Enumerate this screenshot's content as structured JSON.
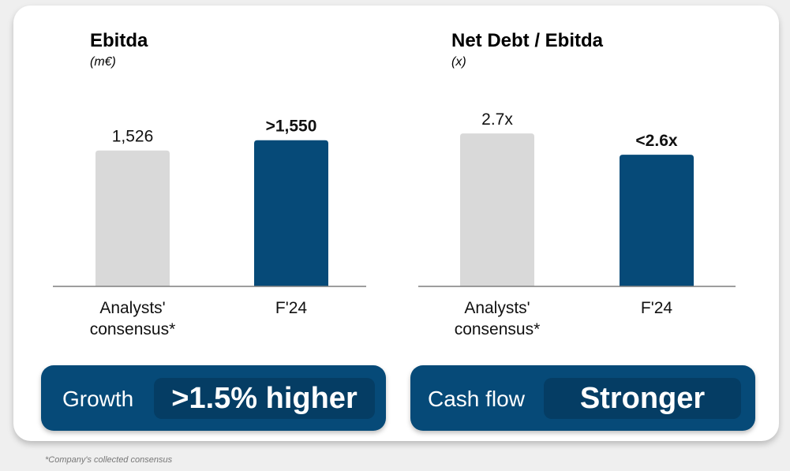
{
  "chart_data": [
    {
      "type": "bar",
      "title": "Ebitda",
      "unit": "(m€)",
      "categories": [
        "Analysts' consensus*",
        "F'24"
      ],
      "category_lines": [
        [
          "Analysts'",
          "consensus*"
        ],
        [
          "F'24"
        ]
      ],
      "values": [
        1526,
        1550
      ],
      "data_labels": [
        "1,526",
        ">1,550"
      ],
      "colors": [
        "#d9d9d9",
        "#064a78"
      ]
    },
    {
      "type": "bar",
      "title": "Net Debt / Ebitda",
      "unit": "(x)",
      "categories": [
        "Analysts' consensus*",
        "F'24"
      ],
      "category_lines": [
        [
          "Analysts'",
          "consensus*"
        ],
        [
          "F'24"
        ]
      ],
      "values": [
        2.7,
        2.6
      ],
      "data_labels": [
        "2.7x",
        "<2.6x"
      ],
      "colors": [
        "#d9d9d9",
        "#064a78"
      ]
    }
  ],
  "callouts": [
    {
      "label": "Growth",
      "value": ">1.5% higher"
    },
    {
      "label": "Cash flow",
      "value": "Stronger"
    }
  ],
  "footnote": "*Company's collected consensus"
}
